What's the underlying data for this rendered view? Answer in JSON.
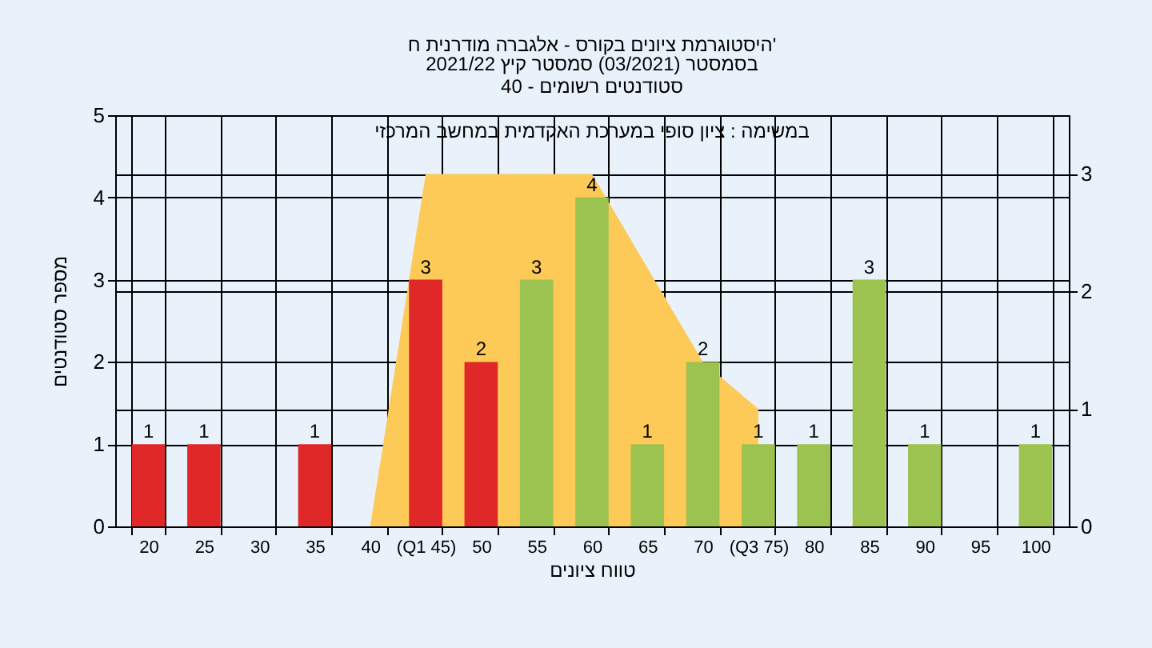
{
  "chart_data": {
    "type": "bar",
    "title": "היסטוגרמת ציונים בקורס - אלגברה מודרנית ח'",
    "subtitle": "בסמסטר (03/2021) סמסטר קיץ 2021/22\nסטודנטים רשומים - 40",
    "xlabel": "טווח ציונים",
    "ylabel": "מספר סטודנטים",
    "annotations": [
      "במשימה : ציון סופי במערכת האקדמית במחשב המרכזי"
    ],
    "categories": [
      "20",
      "25",
      "30",
      "35",
      "40",
      "(Q1 45)",
      "50",
      "55",
      "60",
      "65",
      "70",
      "(Q3 75)",
      "80",
      "85",
      "90",
      "95",
      "100"
    ],
    "series": [
      {
        "type": "area",
        "axis": "y2",
        "color": "#fdc957",
        "values": [
          null,
          null,
          null,
          null,
          0,
          3,
          3,
          3,
          3,
          2.2,
          1.4,
          1,
          null,
          null,
          null,
          null,
          null
        ]
      },
      {
        "colors": [
          "#e02828",
          "#e02828",
          "#e02828",
          "#e02828",
          "#e02828",
          "#e02828",
          "#e02828",
          "#9cc250",
          "#9cc250",
          "#9cc250",
          "#9cc250",
          "#9cc250",
          "#9cc250",
          "#9cc250",
          "#9cc250",
          "#9cc250",
          "#9cc250"
        ],
        "values": [
          1,
          1,
          null,
          1,
          null,
          3,
          2,
          3,
          4,
          1,
          2,
          1,
          1,
          3,
          1,
          null,
          1
        ],
        "value_labels": [
          "1",
          "1",
          null,
          "1",
          null,
          "3",
          "2",
          "3",
          "4",
          "1",
          "2",
          "1",
          "1",
          "3",
          "1",
          null,
          "1"
        ]
      }
    ],
    "ylim": [
      0,
      5
    ],
    "yticks": [
      0,
      1,
      2,
      3,
      4,
      5
    ],
    "y2lim": [
      0,
      3.5
    ],
    "y2ticks": [
      0,
      1,
      2,
      3
    ],
    "grid": true
  }
}
